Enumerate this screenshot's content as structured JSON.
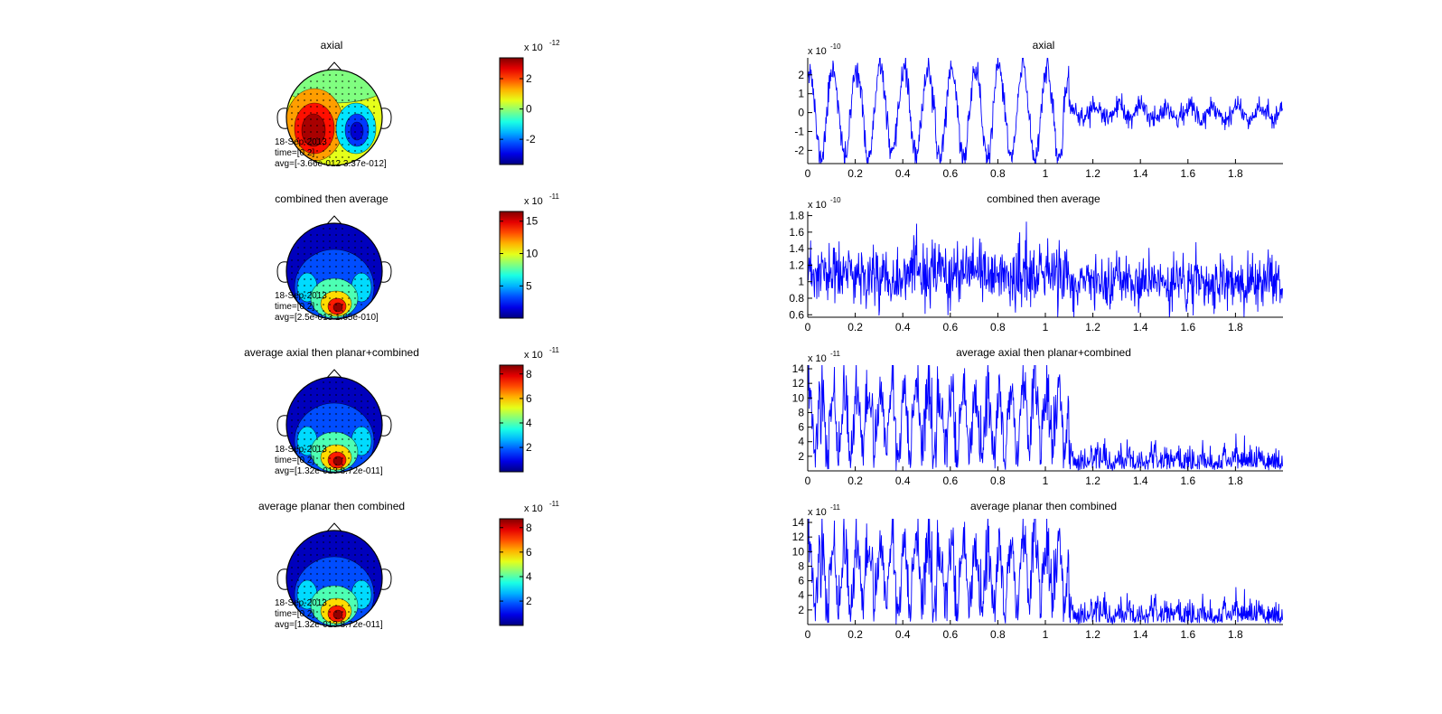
{
  "colors": {
    "trace": "#0000ff",
    "axis": "#000000",
    "background": "#ffffff"
  },
  "rows": [
    {
      "title": "axial",
      "topo": {
        "variant": "dipole",
        "info_lines": [
          "18-Sep-2013",
          "time=[0 2]",
          "avg=[-3.66e-012 3.37e-012]"
        ]
      },
      "colorbar": {
        "range": [
          -3.66,
          3.37
        ],
        "ticks": [
          "2",
          "0",
          "-2"
        ],
        "tick_values": [
          2,
          0,
          -2
        ],
        "exp_base": "x 10",
        "exp": "-12"
      }
    },
    {
      "title": "combined then average",
      "topo": {
        "variant": "planar",
        "info_lines": [
          "18-Sep-2013",
          "time=[0 2]",
          "avg=[2.5e-013 1.65e-010]"
        ]
      },
      "colorbar": {
        "range": [
          0.025,
          16.5
        ],
        "ticks": [
          "15",
          "10",
          "5"
        ],
        "tick_values": [
          15,
          10,
          5
        ],
        "exp_base": "x 10",
        "exp": "-11"
      }
    },
    {
      "title": "average axial then planar+combined",
      "topo": {
        "variant": "planar",
        "info_lines": [
          "18-Sep-2013",
          "time=[0 2]",
          "avg=[1.32e-013 8.72e-011]"
        ]
      },
      "colorbar": {
        "range": [
          0.0132,
          8.72
        ],
        "ticks": [
          "8",
          "6",
          "4",
          "2"
        ],
        "tick_values": [
          8,
          6,
          4,
          2
        ],
        "exp_base": "x 10",
        "exp": "-11"
      }
    },
    {
      "title": "average planar then combined",
      "topo": {
        "variant": "planar",
        "info_lines": [
          "18-Sep-2013",
          "time=[0 2]",
          "avg=[1.32e-013 8.72e-011]"
        ]
      },
      "colorbar": {
        "range": [
          0.0132,
          8.72
        ],
        "ticks": [
          "8",
          "6",
          "4",
          "2"
        ],
        "tick_values": [
          8,
          6,
          4,
          2
        ],
        "exp_base": "x 10",
        "exp": "-11"
      }
    }
  ],
  "chart_data": [
    {
      "type": "line",
      "title": "axial",
      "xlim": [
        0,
        2
      ],
      "ylim": [
        -2.7,
        2.9
      ],
      "xticks": [
        "0",
        "0.2",
        "0.4",
        "0.6",
        "0.8",
        "1",
        "1.2",
        "1.4",
        "1.6",
        "1.8"
      ],
      "xtick_values": [
        0,
        0.2,
        0.4,
        0.6,
        0.8,
        1.0,
        1.2,
        1.4,
        1.6,
        1.8
      ],
      "yticks": [
        "2",
        "1",
        "0",
        "-1",
        "-2"
      ],
      "ytick_values": [
        2,
        1,
        0,
        -1,
        -2
      ],
      "exp_base": "x 10",
      "exp": "-10",
      "series": [
        {
          "name": "axial",
          "kind": "oscillation",
          "n": 1000,
          "mean": 0,
          "amp_first": 2.4,
          "amp_second": 0.35,
          "freq_hz": 10,
          "phase": 1.2,
          "noise_first": 0.38,
          "noise_second": 0.28,
          "seed": 11
        }
      ]
    },
    {
      "type": "line",
      "title": "combined then average",
      "xlim": [
        0,
        2
      ],
      "ylim": [
        0.57,
        1.85
      ],
      "xticks": [
        "0",
        "0.2",
        "0.4",
        "0.6",
        "0.8",
        "1",
        "1.2",
        "1.4",
        "1.6",
        "1.8"
      ],
      "xtick_values": [
        0,
        0.2,
        0.4,
        0.6,
        0.8,
        1.0,
        1.2,
        1.4,
        1.6,
        1.8
      ],
      "yticks": [
        "1.8",
        "1.6",
        "1.4",
        "1.2",
        "1",
        "0.8",
        "0.6"
      ],
      "ytick_values": [
        1.8,
        1.6,
        1.4,
        1.2,
        1.0,
        0.8,
        0.6
      ],
      "exp_base": "x 10",
      "exp": "-10",
      "series": [
        {
          "name": "combined then average",
          "kind": "noise",
          "n": 1000,
          "mean_first": 1.08,
          "mean_second": 0.98,
          "sd_first": 0.19,
          "sd_second": 0.15,
          "seed": 23
        }
      ]
    },
    {
      "type": "line",
      "title": "average axial then planar+combined",
      "xlim": [
        0,
        2
      ],
      "ylim": [
        0,
        14.5
      ],
      "xticks": [
        "0",
        "0.2",
        "0.4",
        "0.6",
        "0.8",
        "1",
        "1.2",
        "1.4",
        "1.6",
        "1.8"
      ],
      "xtick_values": [
        0,
        0.2,
        0.4,
        0.6,
        0.8,
        1.0,
        1.2,
        1.4,
        1.6,
        1.8
      ],
      "yticks": [
        "14",
        "12",
        "10",
        "8",
        "6",
        "4",
        "2"
      ],
      "ytick_values": [
        14,
        12,
        10,
        8,
        6,
        4,
        2
      ],
      "exp_base": "x 10",
      "exp": "-11",
      "series": [
        {
          "name": "average axial then planar+combined",
          "kind": "rectified",
          "n": 1000,
          "amp_first": 10.5,
          "amp_second": 1.6,
          "freq_hz": 10,
          "phase": 1.2,
          "noise_first": 2.4,
          "noise_second": 1.3,
          "seed": 37
        }
      ]
    },
    {
      "type": "line",
      "title": "average planar then combined",
      "xlim": [
        0,
        2
      ],
      "ylim": [
        0,
        14.5
      ],
      "xticks": [
        "0",
        "0.2",
        "0.4",
        "0.6",
        "0.8",
        "1",
        "1.2",
        "1.4",
        "1.6",
        "1.8"
      ],
      "xtick_values": [
        0,
        0.2,
        0.4,
        0.6,
        0.8,
        1.0,
        1.2,
        1.4,
        1.6,
        1.8
      ],
      "yticks": [
        "14",
        "12",
        "10",
        "8",
        "6",
        "4",
        "2"
      ],
      "ytick_values": [
        14,
        12,
        10,
        8,
        6,
        4,
        2
      ],
      "exp_base": "x 10",
      "exp": "-11",
      "series": [
        {
          "name": "average planar then combined",
          "kind": "rectified",
          "n": 1000,
          "amp_first": 10.5,
          "amp_second": 1.6,
          "freq_hz": 10,
          "phase": 1.2,
          "noise_first": 2.4,
          "noise_second": 1.3,
          "seed": 37
        }
      ]
    }
  ]
}
